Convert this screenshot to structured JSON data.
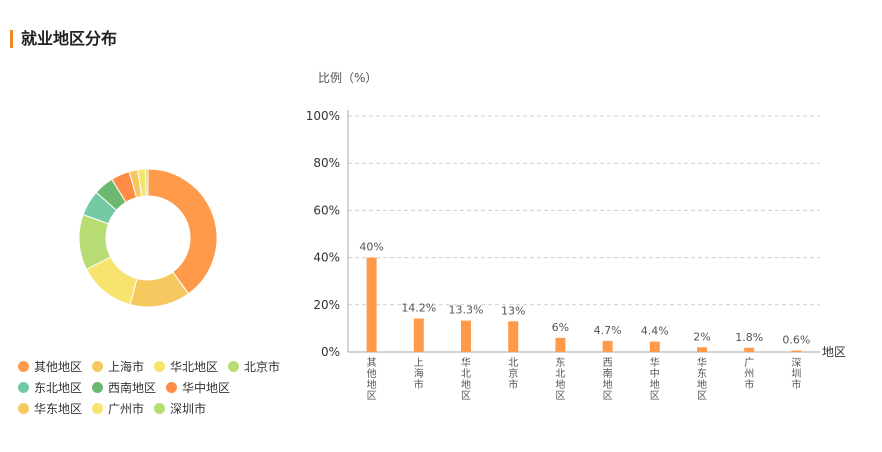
{
  "section": {
    "title": "就业地区分布"
  },
  "chart_data": [
    {
      "type": "pie",
      "style": "donut",
      "categories": [
        "其他地区",
        "上海市",
        "华北地区",
        "北京市",
        "东北地区",
        "西南地区",
        "华中地区",
        "华东地区",
        "广州市",
        "深圳市"
      ],
      "values": [
        40,
        14.2,
        13.3,
        13,
        6,
        4.7,
        4.4,
        2,
        1.8,
        0.6
      ],
      "colors": [
        "#ff9a4a",
        "#f5c95f",
        "#f7e36e",
        "#b8dc74",
        "#74c9a5",
        "#6bb86e",
        "#ff8c46",
        "#f5c95f",
        "#f7e36e",
        "#b8dc74"
      ],
      "legend": {
        "position": "bottom-left",
        "rows": [
          [
            "其他地区",
            "上海市",
            "华北地区",
            "北京市"
          ],
          [
            "东北地区",
            "西南地区",
            "华中地区"
          ],
          [
            "华东地区",
            "广州市",
            "深圳市"
          ]
        ]
      }
    },
    {
      "type": "bar",
      "categories": [
        "其他地区",
        "上海市",
        "华北地区",
        "北京市",
        "东北地区",
        "西南地区",
        "华中地区",
        "华东地区",
        "广州市",
        "深圳市"
      ],
      "values": [
        40,
        14.2,
        13.3,
        13,
        6,
        4.7,
        4.4,
        2,
        1.8,
        0.6
      ],
      "data_labels": [
        "40%",
        "14.2%",
        "13.3%",
        "13%",
        "6%",
        "4.7%",
        "4.4%",
        "2%",
        "1.8%",
        "0.6%"
      ],
      "ylabel": "比例（%）",
      "xlabel": "地区",
      "ylim": [
        0,
        100
      ],
      "yticks": [
        "0%",
        "20%",
        "40%",
        "60%",
        "80%",
        "100%"
      ],
      "ytick_values": [
        0,
        20,
        40,
        60,
        80,
        100
      ],
      "grid": true,
      "bar_color": "#ff9a4a"
    }
  ]
}
